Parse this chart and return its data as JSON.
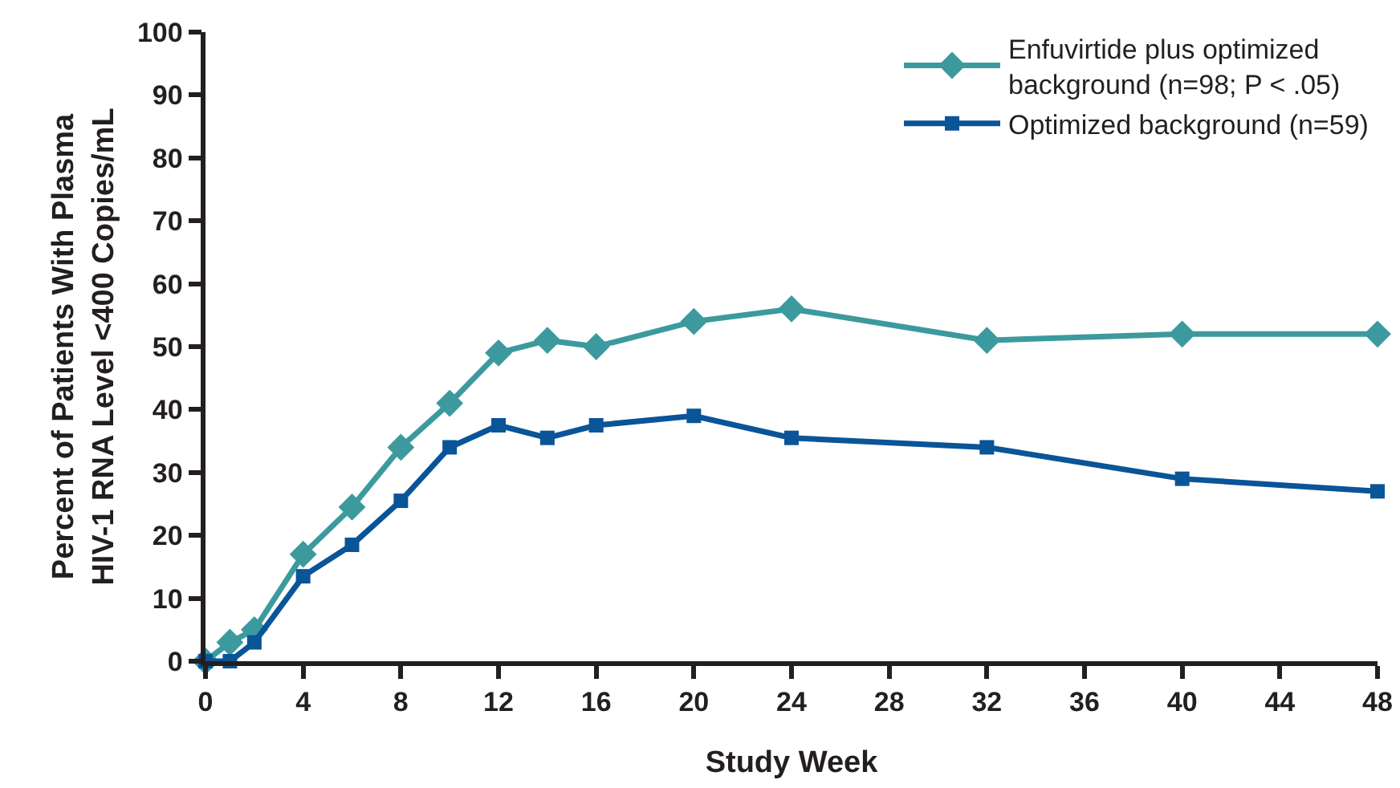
{
  "chart_data": {
    "type": "line",
    "xlabel": "Study Week",
    "ylabel": "Percent of Patients With Plasma\nHIV-1 RNA Level <400 Copies/mL",
    "x": [
      0,
      1,
      2,
      4,
      6,
      8,
      10,
      12,
      14,
      16,
      20,
      24,
      32,
      40,
      48
    ],
    "series": [
      {
        "name": "Enfuvirtide plus optimized\nbackground (n=98; P < .05)",
        "color": "#3c9a9e",
        "marker": "diamond",
        "values": [
          0,
          3,
          5,
          17,
          24.5,
          34,
          41,
          49,
          51,
          50,
          54,
          56,
          51,
          52,
          52
        ]
      },
      {
        "name": "Optimized background (n=59)",
        "color": "#0a5498",
        "marker": "square",
        "values": [
          0,
          0,
          3,
          13.5,
          18.5,
          25.5,
          34,
          37.5,
          35.5,
          37.5,
          39,
          35.5,
          34,
          29,
          27
        ]
      }
    ],
    "xlim": [
      0,
      48
    ],
    "xticks": [
      0,
      4,
      8,
      12,
      16,
      20,
      24,
      28,
      32,
      36,
      40,
      44,
      48
    ],
    "ylim": [
      0,
      100
    ],
    "yticks": [
      0,
      10,
      20,
      30,
      40,
      50,
      60,
      70,
      80,
      90,
      100
    ],
    "grid": false,
    "legend": "top right",
    "line_style": "solid"
  }
}
